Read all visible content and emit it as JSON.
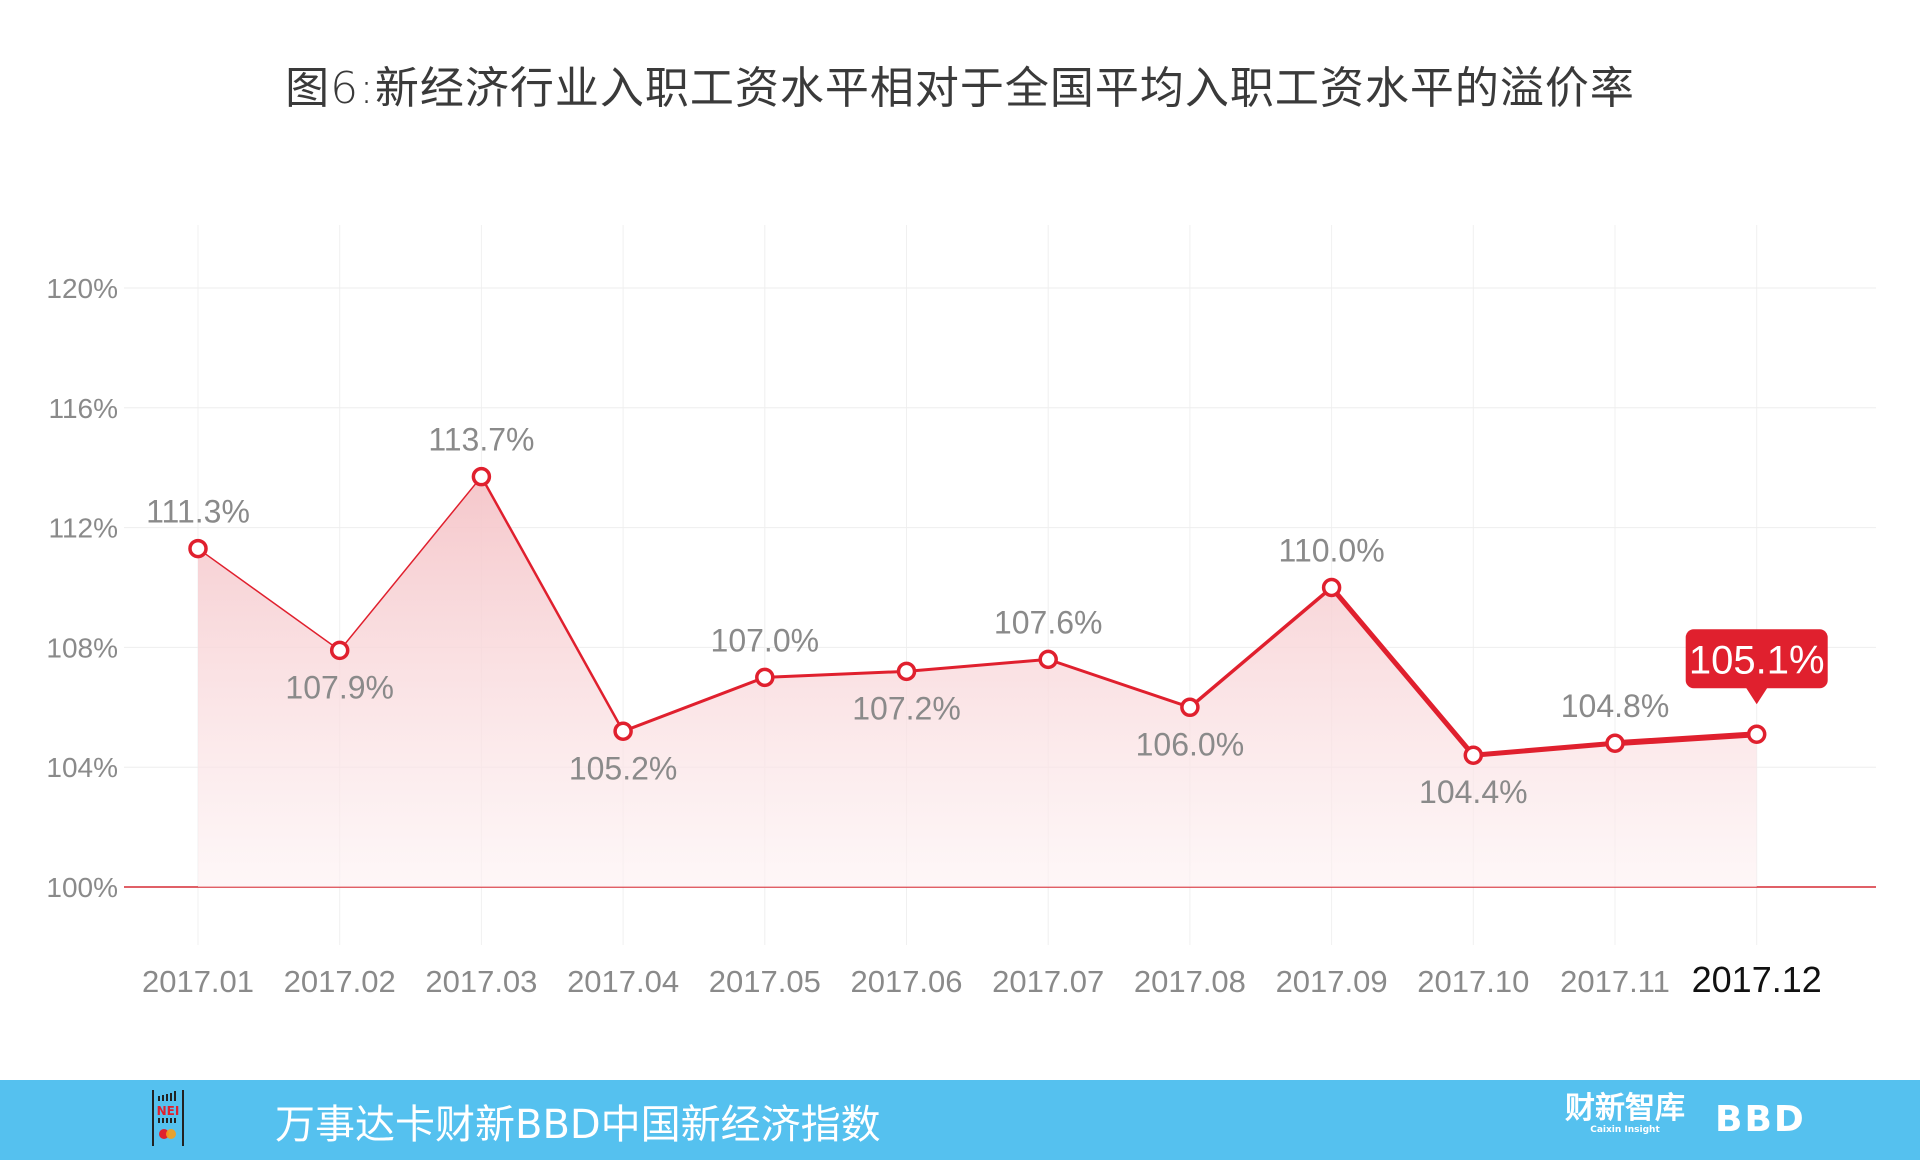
{
  "title": "图6:新经济行业入职工资水平相对于全国平均入职工资水平的溢价率",
  "chart_data": {
    "type": "area",
    "title": "图6:新经济行业入职工资水平相对于全国平均入职工资水平的溢价率",
    "xlabel": "",
    "ylabel": "",
    "categories": [
      "2017.01",
      "2017.02",
      "2017.03",
      "2017.04",
      "2017.05",
      "2017.06",
      "2017.07",
      "2017.08",
      "2017.09",
      "2017.10",
      "2017.11",
      "2017.12"
    ],
    "values": [
      111.3,
      107.9,
      113.7,
      105.2,
      107.0,
      107.2,
      107.6,
      106.0,
      110.0,
      104.4,
      104.8,
      105.1
    ],
    "labels": [
      "111.3%",
      "107.9%",
      "113.7%",
      "105.2%",
      "107.0%",
      "107.2%",
      "107.6%",
      "106.0%",
      "110.0%",
      "104.4%",
      "104.8%",
      "105.1%"
    ],
    "label_positions": [
      "above",
      "below",
      "above",
      "below",
      "above",
      "below",
      "above",
      "below",
      "above",
      "below",
      "above",
      "highlight"
    ],
    "highlight_index": 11,
    "ylim": [
      100,
      120
    ],
    "yticks": [
      100,
      104,
      108,
      112,
      116,
      120
    ],
    "ytick_labels": [
      "100%",
      "104%",
      "108%",
      "112%",
      "116%",
      "120%"
    ],
    "grid": true,
    "legend": null,
    "colors": {
      "line": "#e0202e",
      "fill": "#f6c9cd",
      "baseline": "#d62c35",
      "highlight_bg": "#e0202e",
      "grid": "#eeeeee",
      "tick_text": "#8a8a8a"
    }
  },
  "footer": {
    "title": "万事达卡财新BBD中国新经济指数",
    "logo_left": "NEI",
    "logo_caixin": "财新智库",
    "logo_caixin_sub": "Caixin Insight",
    "logo_bbd": "BBD",
    "bg_color": "#55c1ef"
  }
}
